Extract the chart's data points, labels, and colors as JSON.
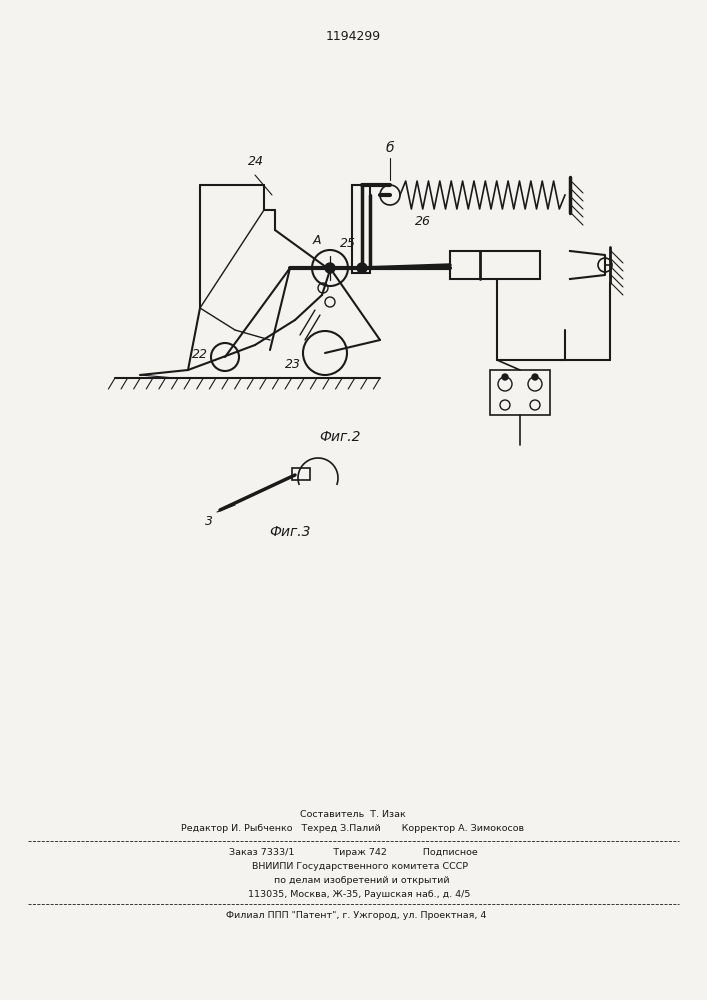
{
  "patent_number": "1194299",
  "bg_color": "#f5f3f0",
  "line_color": "#1a1a1a",
  "fig2_label": "Фиг.2",
  "fig3_label": "Фиг.3",
  "footer_line1": "Составитель  Т. Изак",
  "footer_line2": "Редактор И. Рыбченко   Техред З.Палий       Корректор А. Зимокосов",
  "footer_line3": "Заказ 7333/1             Тираж 742            Подписное",
  "footer_line4": "     ВНИИПИ Государственного комитета СССР",
  "footer_line5": "      по делам изобретений и открытий",
  "footer_line6": "    113035, Москва, Ж-35, Раушская наб., д. 4/5",
  "footer_line7": "  Филиал ППП \"Патент\", г. Ужгород, ул. Проектная, 4"
}
